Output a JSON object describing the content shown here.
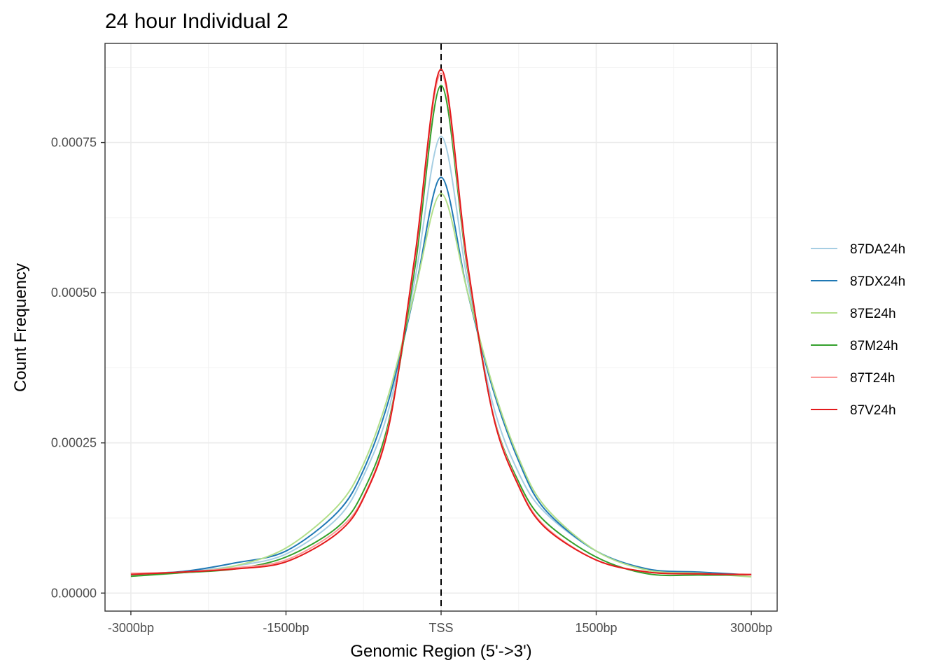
{
  "chart_data": {
    "type": "line",
    "title": "24 hour Individual 2",
    "xlabel": "Genomic Region (5'->3')",
    "ylabel": "Count Frequency",
    "xlim": [
      -3250,
      3250
    ],
    "ylim": [
      -3e-05,
      0.000915
    ],
    "x_ticks": [
      -3000,
      -1500,
      0,
      1500,
      3000
    ],
    "x_tick_labels": [
      "-3000bp",
      "-1500bp",
      "TSS",
      "1500bp",
      "3000bp"
    ],
    "y_ticks": [
      0,
      0.00025,
      0.0005,
      0.00075
    ],
    "y_tick_labels": [
      "0.00000",
      "0.00025",
      "0.00050",
      "0.00075"
    ],
    "reference_line": {
      "x": 0,
      "style": "dashed",
      "color": "#000000"
    },
    "grid": true,
    "legend_position": "right",
    "x": [
      -3000,
      -2500,
      -2000,
      -1500,
      -1000,
      -750,
      -500,
      -250,
      0,
      250,
      500,
      750,
      1000,
      1500,
      2000,
      2500,
      3000
    ],
    "series": [
      {
        "name": "87DA24h",
        "color": "#A6CEE3",
        "values": [
          3e-05,
          3.5e-05,
          4.5e-05,
          6.5e-05,
          0.000125,
          0.000195,
          0.00031,
          0.000525,
          0.00076,
          0.000525,
          0.000315,
          0.0002,
          0.000135,
          7e-05,
          4e-05,
          3.3e-05,
          3e-05
        ]
      },
      {
        "name": "87DX24h",
        "color": "#1F78B4",
        "values": [
          3.2e-05,
          3.6e-05,
          5e-05,
          7e-05,
          0.000135,
          0.000205,
          0.000325,
          0.000505,
          0.000692,
          0.000505,
          0.00034,
          0.00022,
          0.00014,
          7e-05,
          4e-05,
          3.5e-05,
          3e-05
        ]
      },
      {
        "name": "87E24h",
        "color": "#B2DF8A",
        "values": [
          2.8e-05,
          3.4e-05,
          4.5e-05,
          7.5e-05,
          0.000145,
          0.000215,
          0.000335,
          0.000505,
          0.000665,
          0.000505,
          0.000345,
          0.000225,
          0.000145,
          7e-05,
          3.8e-05,
          3.3e-05,
          2.7e-05
        ]
      },
      {
        "name": "87M24h",
        "color": "#33A02C",
        "values": [
          2.8e-05,
          3.4e-05,
          4e-05,
          6e-05,
          0.00011,
          0.00017,
          0.00029,
          0.000545,
          0.000845,
          0.000545,
          0.0003,
          0.000185,
          0.00012,
          6e-05,
          3.2e-05,
          3e-05,
          3e-05
        ]
      },
      {
        "name": "87T24h",
        "color": "#FB9A99",
        "values": [
          3.3e-05,
          3.5e-05,
          4.2e-05,
          5.5e-05,
          0.000105,
          0.00016,
          0.000285,
          0.00056,
          0.000865,
          0.00055,
          0.0003,
          0.00018,
          0.000112,
          5.5e-05,
          3.5e-05,
          3.2e-05,
          3e-05
        ]
      },
      {
        "name": "87V24h",
        "color": "#E31A1C",
        "values": [
          3.1e-05,
          3.5e-05,
          4e-05,
          5.2e-05,
          0.0001,
          0.000158,
          0.000282,
          0.000565,
          0.000872,
          0.000555,
          0.000298,
          0.000178,
          0.00011,
          5.5e-05,
          3.5e-05,
          3.2e-05,
          3.1e-05
        ]
      }
    ]
  }
}
